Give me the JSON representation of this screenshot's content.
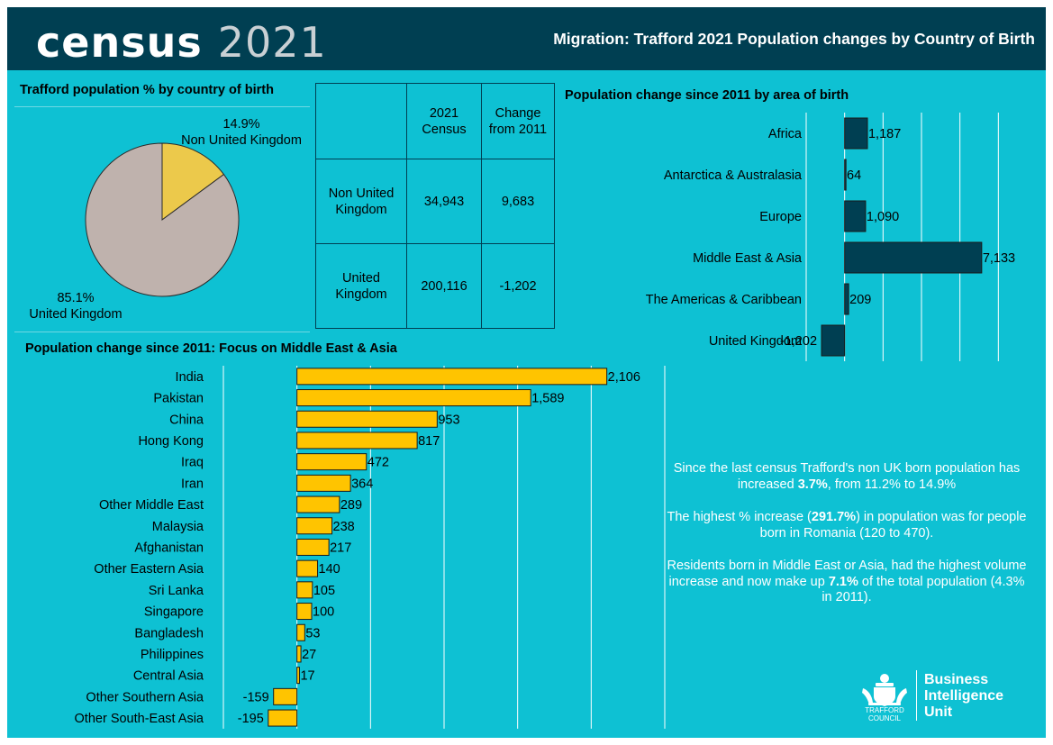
{
  "header": {
    "logo_word": "census",
    "logo_year": "2021",
    "title": "Migration: Trafford 2021 Population changes by Country of Birth"
  },
  "colors": {
    "frame": "#0ec1d3",
    "header": "#003f52",
    "bar_dark": "#003f52",
    "bar_yellow": "#ffc400",
    "pie_non_uk": "#ecc94b",
    "pie_uk": "#bfb2ad"
  },
  "pie_section": {
    "title": "Trafford population % by country of birth"
  },
  "bar1_section": {
    "title": "Population change since 2011 by area of birth"
  },
  "bar2_section": {
    "title": "Population change since 2011: Focus on Middle East & Asia"
  },
  "table": {
    "headers": [
      "",
      "2021 Census",
      "Change from 2011"
    ],
    "rows": [
      {
        "label": "Non United Kingdom",
        "census": "34,943",
        "change": "9,683"
      },
      {
        "label": "United Kingdom",
        "census": "200,116",
        "change": "-1,202"
      }
    ]
  },
  "chart_data": [
    {
      "type": "pie",
      "title": "Trafford population % by country of birth",
      "slices": [
        {
          "label": "Non United Kingdom",
          "value": 14.9,
          "display": "14.9%"
        },
        {
          "label": "United Kingdom",
          "value": 85.1,
          "display": "85.1%"
        }
      ]
    },
    {
      "type": "bar",
      "orientation": "horizontal",
      "title": "Population change since 2011 by area of birth",
      "categories": [
        "Africa",
        "Antarctica & Australasia",
        "Europe",
        "Middle East & Asia",
        "The Americas & Caribbean",
        "United Kingdom"
      ],
      "values": [
        1187,
        64,
        1090,
        7133,
        209,
        -1202
      ],
      "labels": [
        "1,187",
        "64",
        "1,090",
        "7,133",
        "209",
        "-1,202"
      ],
      "xlim": [
        -2000,
        10000
      ],
      "grid": true
    },
    {
      "type": "bar",
      "orientation": "horizontal",
      "title": "Population change since 2011: Focus on Middle East & Asia",
      "categories": [
        "India",
        "Pakistan",
        "China",
        "Hong Kong",
        "Iraq",
        "Iran",
        "Other Middle East",
        "Malaysia",
        "Afghanistan",
        "Other Eastern Asia",
        "Sri Lanka",
        "Singapore",
        "Bangladesh",
        "Philippines",
        "Central Asia",
        "Other Southern Asia",
        "Other South-East Asia"
      ],
      "values": [
        2106,
        1589,
        953,
        817,
        472,
        364,
        289,
        238,
        217,
        140,
        105,
        100,
        53,
        27,
        17,
        -159,
        -195
      ],
      "labels": [
        "2,106",
        "1,589",
        "953",
        "817",
        "472",
        "364",
        "289",
        "238",
        "217",
        "140",
        "105",
        "100",
        "53",
        "27",
        "17",
        "-159",
        "-195"
      ],
      "xlim": [
        -500,
        2500
      ],
      "grid": true
    }
  ],
  "summary": {
    "p1_a": "Since the last census Trafford's non UK born population has increased ",
    "p1_b": "3.7%",
    "p1_c": ", from 11.2% to 14.9%",
    "p2_a": "The highest % increase (",
    "p2_b": "291.7%",
    "p2_c": ") in population was for people born in Romania (120 to 470).",
    "p3_a": "Residents born in Middle East or Asia, had the highest volume increase and now make up ",
    "p3_b": "7.1%",
    "p3_c": " of the total population (4.3% in 2011)."
  },
  "footer": {
    "crest_icon": "trafford-council-crest-icon",
    "council_line1": "TRAFFORD",
    "council_line2": "COUNCIL",
    "unit_line1": "Business",
    "unit_line2": "Intelligence",
    "unit_line3": "Unit"
  }
}
